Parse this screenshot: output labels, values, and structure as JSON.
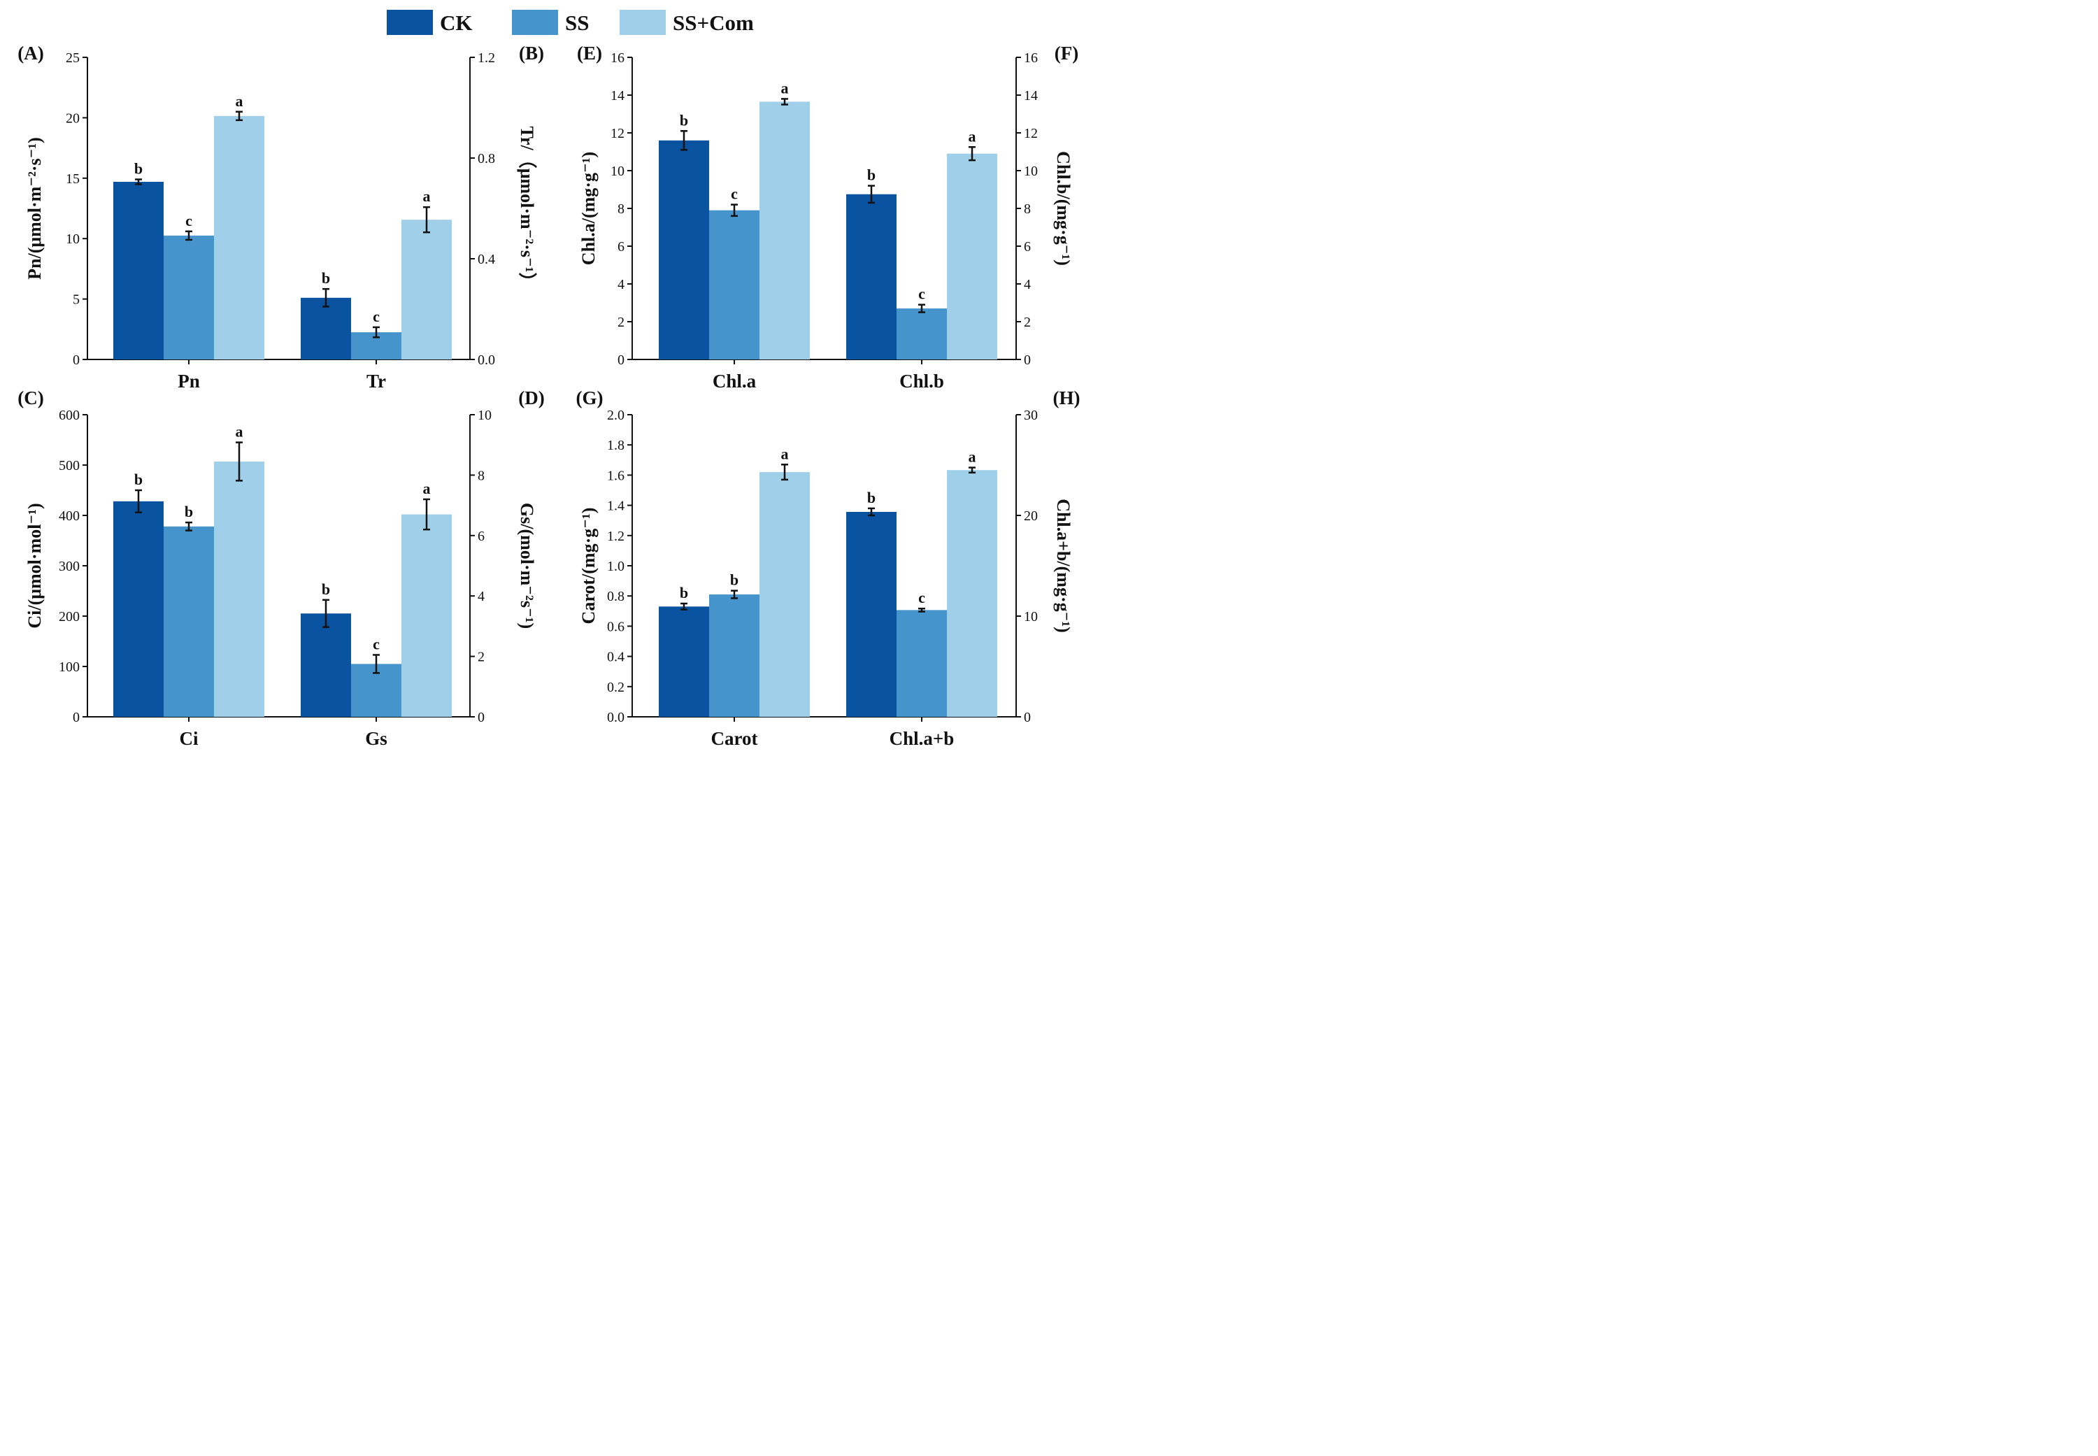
{
  "legend": [
    "CK",
    "SS",
    "SS+Com"
  ],
  "colors": {
    "CK": "#0a53a0",
    "SS": "#4594cb",
    "SS+Com": "#a0cfe9",
    "axis": "#111111"
  },
  "chart_data": [
    {
      "type": "bar",
      "panels": [
        "(A)",
        "(B)"
      ],
      "categories": [
        "Pn",
        "Tr"
      ],
      "left_axis": {
        "title": "Pn/(μmol·m⁻²·s⁻¹)",
        "ylim": [
          0,
          25
        ],
        "ticks": [
          "0",
          "5",
          "10",
          "15",
          "20",
          "25"
        ]
      },
      "right_axis": {
        "title": "Tr/（μmol·m⁻²·s⁻¹）",
        "ylim": [
          0,
          1.2
        ],
        "ticks": [
          "0.0",
          "0.4",
          "0.8",
          "1.2"
        ]
      },
      "series": [
        {
          "name": "CK",
          "values": [
            14.7,
            0.245
          ],
          "errors": [
            0.2,
            0.035
          ],
          "letters": [
            "b",
            "b"
          ]
        },
        {
          "name": "SS",
          "values": [
            10.25,
            0.108
          ],
          "errors": [
            0.35,
            0.02
          ],
          "letters": [
            "c",
            "c"
          ]
        },
        {
          "name": "SS+Com",
          "values": [
            20.15,
            0.555
          ],
          "errors": [
            0.35,
            0.05
          ],
          "letters": [
            "a",
            "a"
          ]
        }
      ]
    },
    {
      "type": "bar",
      "panels": [
        "(C)",
        "(D)"
      ],
      "categories": [
        "Ci",
        "Gs"
      ],
      "left_axis": {
        "title": "Ci/(μmol·mol⁻¹)",
        "ylim": [
          0,
          600
        ],
        "ticks": [
          "0",
          "100",
          "200",
          "300",
          "400",
          "500",
          "600"
        ]
      },
      "right_axis": {
        "title": "Gs/(mol·m⁻²s⁻¹)",
        "ylim": [
          0,
          10
        ],
        "ticks": [
          "0",
          "2",
          "4",
          "6",
          "8",
          "10"
        ]
      },
      "series": [
        {
          "name": "CK",
          "values": [
            428,
            3.42
          ],
          "errors": [
            22,
            0.45
          ],
          "letters": [
            "b",
            "b"
          ]
        },
        {
          "name": "SS",
          "values": [
            378,
            1.75
          ],
          "errors": [
            8,
            0.3
          ],
          "letters": [
            "b",
            "c"
          ]
        },
        {
          "name": "SS+Com",
          "values": [
            507,
            6.7
          ],
          "errors": [
            38,
            0.5
          ],
          "letters": [
            "a",
            "a"
          ]
        }
      ]
    },
    {
      "type": "bar",
      "panels": [
        "(E)",
        "(F)"
      ],
      "categories": [
        "Chl.a",
        "Chl.b"
      ],
      "left_axis": {
        "title": "Chl.a/(mg·g⁻¹)",
        "ylim": [
          0,
          16
        ],
        "ticks": [
          "0",
          "2",
          "4",
          "6",
          "8",
          "10",
          "12",
          "14",
          "16"
        ]
      },
      "right_axis": {
        "title": "Chl.b/(mg·g⁻¹)",
        "ylim": [
          0,
          16
        ],
        "ticks": [
          "0",
          "2",
          "4",
          "6",
          "8",
          "10",
          "12",
          "14",
          "16"
        ]
      },
      "series": [
        {
          "name": "CK",
          "values": [
            11.6,
            8.75
          ],
          "errors": [
            0.5,
            0.45
          ],
          "letters": [
            "b",
            "b"
          ]
        },
        {
          "name": "SS",
          "values": [
            7.9,
            2.7
          ],
          "errors": [
            0.3,
            0.2
          ],
          "letters": [
            "c",
            "c"
          ]
        },
        {
          "name": "SS+Com",
          "values": [
            13.65,
            10.9
          ],
          "errors": [
            0.15,
            0.35
          ],
          "letters": [
            "a",
            "a"
          ]
        }
      ]
    },
    {
      "type": "bar",
      "panels": [
        "(G)",
        "(H)"
      ],
      "categories": [
        "Carot",
        "Chl.a+b"
      ],
      "left_axis": {
        "title": "Carot/(mg·g⁻¹)",
        "ylim": [
          0,
          2
        ],
        "ticks": [
          "0.0",
          "0.2",
          "0.4",
          "0.6",
          "0.8",
          "1.0",
          "1.2",
          "1.4",
          "1.6",
          "1.8",
          "2.0"
        ]
      },
      "right_axis": {
        "title": "Chl.a+b/(mg·g⁻¹)",
        "ylim": [
          0,
          30
        ],
        "ticks": [
          "0",
          "10",
          "20",
          "30"
        ]
      },
      "series": [
        {
          "name": "CK",
          "values": [
            0.73,
            20.35
          ],
          "errors": [
            0.02,
            0.35
          ],
          "letters": [
            "b",
            "b"
          ]
        },
        {
          "name": "SS",
          "values": [
            0.81,
            10.6
          ],
          "errors": [
            0.025,
            0.15
          ],
          "letters": [
            "b",
            "c"
          ]
        },
        {
          "name": "SS+Com",
          "values": [
            1.62,
            24.5
          ],
          "errors": [
            0.05,
            0.25
          ],
          "letters": [
            "a",
            "a"
          ]
        }
      ]
    }
  ]
}
